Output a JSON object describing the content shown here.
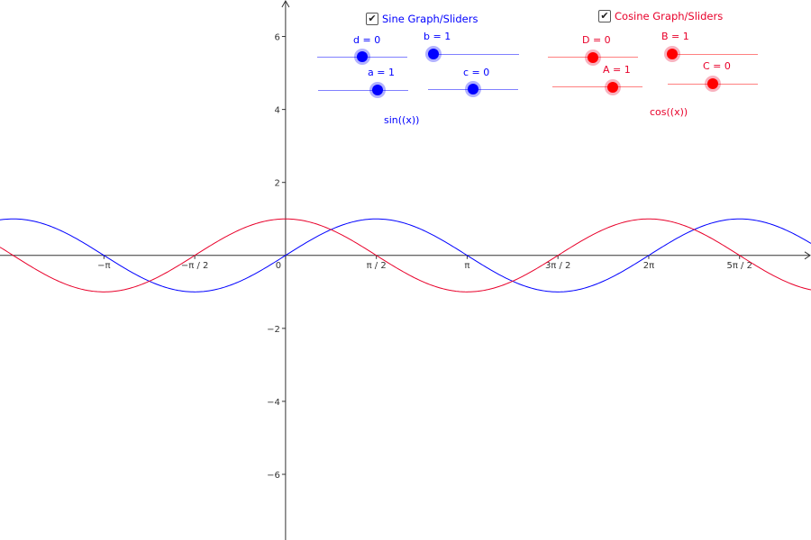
{
  "sine_panel": {
    "checkbox_label": "Sine Graph/Sliders",
    "checked": true,
    "color": "#0000ff",
    "function_label": "sin((x))",
    "sliders": [
      {
        "name": "d",
        "label": "d = 0",
        "value": 0
      },
      {
        "name": "b",
        "label": "b = 1",
        "value": 1
      },
      {
        "name": "a",
        "label": "a = 1",
        "value": 1
      },
      {
        "name": "c",
        "label": "c = 0",
        "value": 0
      }
    ]
  },
  "cosine_panel": {
    "checkbox_label": "Cosine Graph/Sliders",
    "checked": true,
    "color": "#e8002a",
    "function_label": "cos((x))",
    "sliders": [
      {
        "name": "D",
        "label": "D = 0",
        "value": 0
      },
      {
        "name": "B",
        "label": "B = 1",
        "value": 1
      },
      {
        "name": "A",
        "label": "A = 1",
        "value": 1
      },
      {
        "name": "C",
        "label": "C = 0",
        "value": 0
      }
    ]
  },
  "chart_data": {
    "type": "line",
    "xlim": [
      -4.94,
      9.09
    ],
    "ylim": [
      -7.8,
      7.0
    ],
    "x_tick_labels": [
      "−π",
      "−π / 2",
      "0",
      "π / 2",
      "π",
      "3π / 2",
      "2π",
      "5π / 2"
    ],
    "x_tick_values": [
      -3.1416,
      -1.5708,
      0,
      1.5708,
      3.1416,
      4.7124,
      6.2832,
      7.854
    ],
    "y_tick_labels": [
      "6",
      "4",
      "2",
      "−2",
      "−4",
      "−6"
    ],
    "y_tick_values": [
      6,
      4,
      2,
      -2,
      -4,
      -6
    ],
    "series": [
      {
        "function": "sin(x)",
        "color": "#0000ff"
      },
      {
        "function": "cos(x)",
        "color": "#e8002a"
      }
    ]
  }
}
